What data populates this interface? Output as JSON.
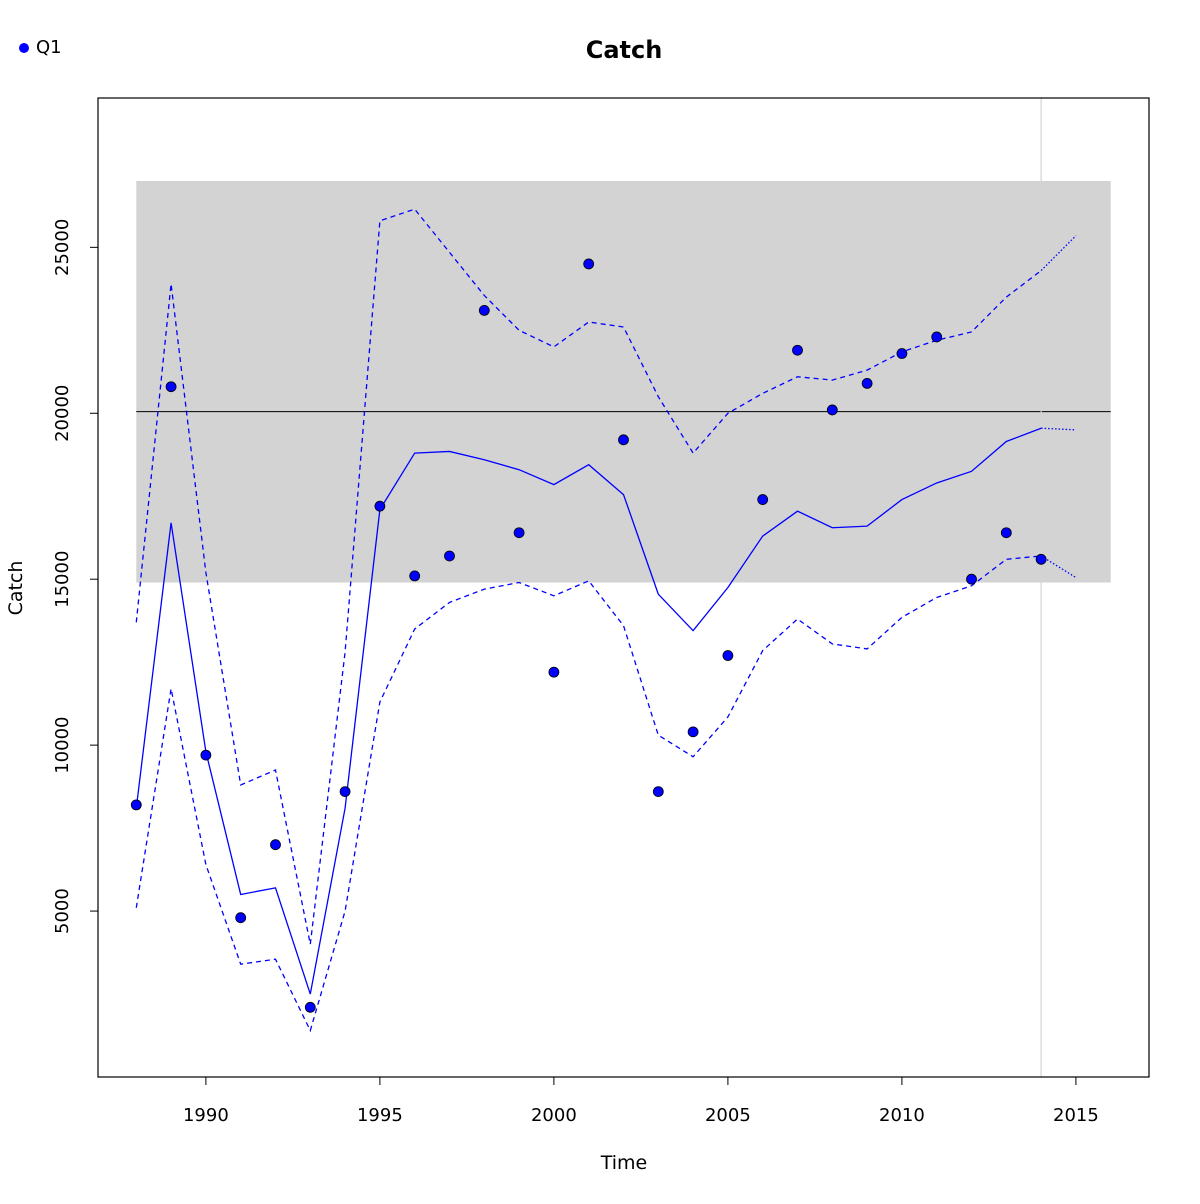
{
  "chart_data": {
    "type": "line",
    "title": "Catch",
    "xlabel": "Time",
    "ylabel": "Catch",
    "xlim": [
      1986.9,
      2017.1
    ],
    "ylim": [
      0,
      29500
    ],
    "x_ticks": [
      1990,
      1995,
      2000,
      2005,
      2010,
      2015
    ],
    "y_ticks": [
      5000,
      10000,
      15000,
      20000,
      25000
    ],
    "grid": false,
    "legend": {
      "position": "top-left",
      "entries": [
        "Q1"
      ]
    },
    "colors": {
      "series": "#0000ff",
      "band": "#d3d3d3",
      "reference_line": "#000000",
      "vertical_line": "#d3d3d3"
    },
    "band": {
      "x": [
        1988,
        2016
      ],
      "y": [
        14900,
        27000
      ]
    },
    "reference_line_y": 20050,
    "vertical_line_x": 2014,
    "series": [
      {
        "name": "Q1",
        "kind": "points",
        "x": [
          1988,
          1989,
          1990,
          1991,
          1992,
          1993,
          1994,
          1995,
          1996,
          1997,
          1998,
          1999,
          2000,
          2001,
          2002,
          2003,
          2004,
          2005,
          2006,
          2007,
          2008,
          2009,
          2010,
          2011,
          2012,
          2013,
          2014
        ],
        "values": [
          8200,
          20800,
          9700,
          4800,
          7000,
          2100,
          8600,
          17200,
          15100,
          15700,
          23100,
          16400,
          12200,
          24500,
          19200,
          8600,
          10400,
          12700,
          17400,
          21900,
          20100,
          20900,
          21800,
          22300,
          15000,
          16400,
          15600
        ]
      },
      {
        "kind": "line",
        "x": [
          1988,
          1989,
          1990,
          1991,
          1992,
          1993,
          1994,
          1995,
          1996,
          1997,
          1998,
          1999,
          2000,
          2001,
          2002,
          2003,
          2004,
          2005,
          2006,
          2007,
          2008,
          2009,
          2010,
          2011,
          2012,
          2013,
          2014
        ],
        "values": [
          8100,
          16700,
          9800,
          5500,
          5700,
          2500,
          8100,
          17100,
          18800,
          18850,
          18600,
          18300,
          17850,
          18450,
          17550,
          14550,
          13450,
          14750,
          16300,
          17050,
          16550,
          16600,
          17400,
          17900,
          18250,
          19150,
          19550
        ]
      },
      {
        "kind": "line-dashed",
        "x": [
          1988,
          1989,
          1990,
          1991,
          1992,
          1993,
          1994,
          1995,
          1996,
          1997,
          1998,
          1999,
          2000,
          2001,
          2002,
          2003,
          2004,
          2005,
          2006,
          2007,
          2008,
          2009,
          2010,
          2011,
          2012,
          2013,
          2014
        ],
        "values": [
          13700,
          23900,
          15200,
          8800,
          9250,
          4000,
          12800,
          25800,
          26150,
          24850,
          23550,
          22500,
          22000,
          22750,
          22600,
          20500,
          18800,
          20000,
          20600,
          21100,
          21000,
          21300,
          21850,
          22200,
          22450,
          23500,
          24300
        ]
      },
      {
        "kind": "line-dashed",
        "x": [
          1988,
          1989,
          1990,
          1991,
          1992,
          1993,
          1994,
          1995,
          1996,
          1997,
          1998,
          1999,
          2000,
          2001,
          2002,
          2003,
          2004,
          2005,
          2006,
          2007,
          2008,
          2009,
          2010,
          2011,
          2012,
          2013,
          2014
        ],
        "values": [
          5100,
          11700,
          6400,
          3400,
          3550,
          1400,
          5000,
          11300,
          13500,
          14300,
          14700,
          14900,
          14500,
          14950,
          13600,
          10300,
          9650,
          10850,
          12850,
          13800,
          13050,
          12900,
          13850,
          14450,
          14800,
          15600,
          15700
        ]
      },
      {
        "kind": "forecast-dotted",
        "x": [
          2014,
          2015
        ],
        "values": [
          19550,
          19500
        ]
      },
      {
        "kind": "forecast-dotted",
        "x": [
          2014,
          2015
        ],
        "values": [
          24300,
          25350
        ]
      },
      {
        "kind": "forecast-dotted",
        "x": [
          2014,
          2015
        ],
        "values": [
          15700,
          15050
        ]
      }
    ]
  }
}
